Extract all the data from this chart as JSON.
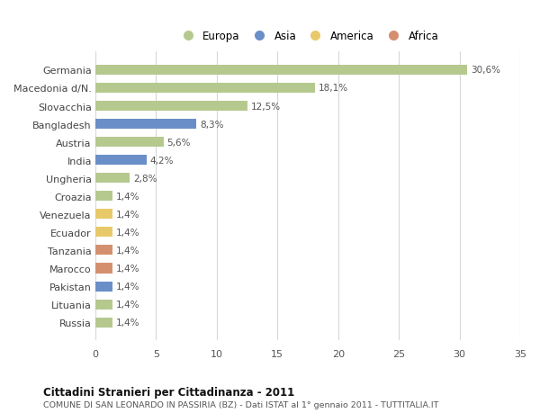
{
  "categories": [
    "Russia",
    "Lituania",
    "Pakistan",
    "Marocco",
    "Tanzania",
    "Ecuador",
    "Venezuela",
    "Croazia",
    "Ungheria",
    "India",
    "Austria",
    "Bangladesh",
    "Slovacchia",
    "Macedonia d/N.",
    "Germania"
  ],
  "values": [
    1.4,
    1.4,
    1.4,
    1.4,
    1.4,
    1.4,
    1.4,
    1.4,
    2.8,
    4.2,
    5.6,
    8.3,
    12.5,
    18.1,
    30.6
  ],
  "colors": [
    "#b5c98e",
    "#b5c98e",
    "#6a8fc8",
    "#d4906e",
    "#d4906e",
    "#e8c96a",
    "#e8c96a",
    "#b5c98e",
    "#b5c98e",
    "#6a8fc8",
    "#b5c98e",
    "#6a8fc8",
    "#b5c98e",
    "#b5c98e",
    "#b5c98e"
  ],
  "labels": [
    "1,4%",
    "1,4%",
    "1,4%",
    "1,4%",
    "1,4%",
    "1,4%",
    "1,4%",
    "1,4%",
    "2,8%",
    "4,2%",
    "5,6%",
    "8,3%",
    "12,5%",
    "18,1%",
    "30,6%"
  ],
  "legend_labels": [
    "Europa",
    "Asia",
    "America",
    "Africa"
  ],
  "legend_colors": [
    "#b5c98e",
    "#6a8fc8",
    "#e8c96a",
    "#d4906e"
  ],
  "title1": "Cittadini Stranieri per Cittadinanza - 2011",
  "title2": "COMUNE DI SAN LEONARDO IN PASSIRIA (BZ) - Dati ISTAT al 1° gennaio 2011 - TUTTITALIA.IT",
  "xlim": [
    0,
    35
  ],
  "xticks": [
    0,
    5,
    10,
    15,
    20,
    25,
    30,
    35
  ],
  "background_color": "#ffffff",
  "grid_color": "#d8d8d8"
}
